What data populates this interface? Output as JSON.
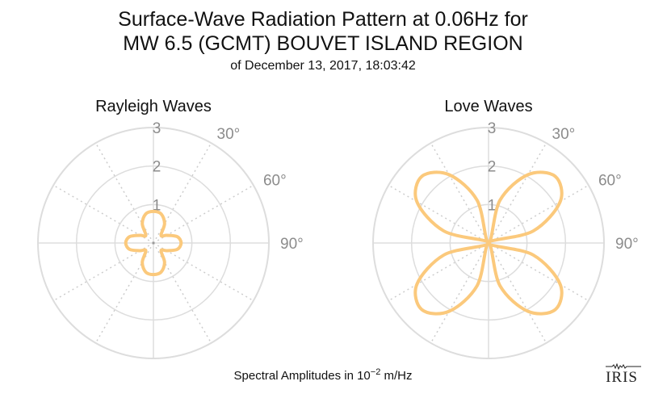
{
  "header": {
    "title_line1": "Surface-Wave Radiation Pattern at 0.06Hz for",
    "title_line2": "MW 6.5 (GCMT) BOUVET ISLAND REGION",
    "subtitle": "of December 13, 2017, 18:03:42"
  },
  "footer": {
    "label_prefix": "Spectral Amplitudes in ",
    "label_base": "10",
    "label_exp": "−2",
    "label_unit": " m/Hz"
  },
  "logo": {
    "text": "IRIS"
  },
  "colors": {
    "pattern": "#fbc97c",
    "grid": "#dddddd",
    "grid_dotted": "#cccccc",
    "tick": "#8c8c8c"
  },
  "chart_data": [
    {
      "type": "polar",
      "title": "Rayleigh Waves",
      "r_ticks": [
        "1",
        "2",
        "3"
      ],
      "r_max": 3,
      "theta_ticks": [
        "30°",
        "60°",
        "90°"
      ],
      "theta_ticks_deg": [
        30,
        60,
        90
      ],
      "series": [
        {
          "theta_deg": [
            0,
            15,
            30,
            45,
            60,
            75,
            90,
            105,
            120,
            135,
            150,
            165,
            180,
            195,
            210,
            225,
            240,
            255,
            270,
            285,
            300,
            315,
            330,
            345
          ],
          "r": [
            0.82,
            0.78,
            0.58,
            0.28,
            0.4,
            0.64,
            0.72,
            0.64,
            0.4,
            0.28,
            0.58,
            0.78,
            0.82,
            0.78,
            0.58,
            0.28,
            0.4,
            0.64,
            0.72,
            0.64,
            0.4,
            0.28,
            0.58,
            0.78
          ]
        }
      ]
    },
    {
      "type": "polar",
      "title": "Love Waves",
      "r_ticks": [
        "1",
        "2",
        "3"
      ],
      "r_max": 3,
      "theta_ticks": [
        "30°",
        "60°",
        "90°"
      ],
      "theta_ticks_deg": [
        30,
        60,
        90
      ],
      "series": [
        {
          "theta_deg": [
            0,
            15,
            30,
            45,
            60,
            75,
            90,
            105,
            120,
            135,
            150,
            165,
            180,
            195,
            210,
            225,
            240,
            255,
            270,
            285,
            300,
            315,
            330,
            345
          ],
          "r": [
            0.0,
            1.15,
            2.05,
            2.45,
            2.15,
            1.2,
            0.0,
            1.2,
            2.15,
            2.45,
            2.05,
            1.15,
            0.0,
            1.15,
            2.05,
            2.45,
            2.15,
            1.2,
            0.0,
            1.2,
            2.15,
            2.45,
            2.05,
            1.15
          ]
        }
      ]
    }
  ]
}
